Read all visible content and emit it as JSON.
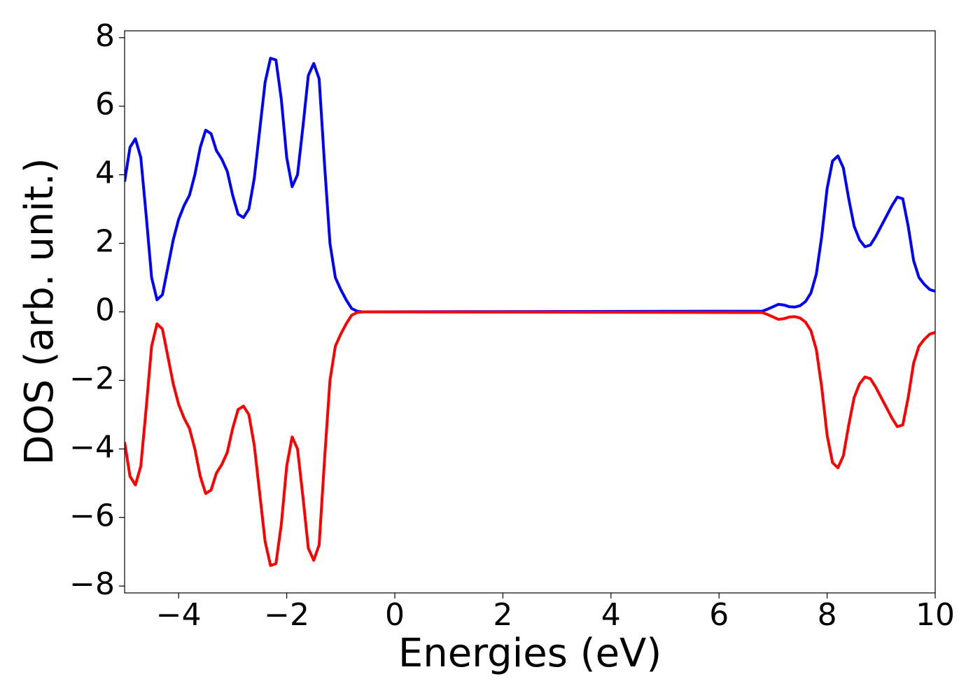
{
  "chart_data": {
    "type": "line",
    "xlabel": "Energies (eV)",
    "ylabel": "DOS (arb. unit.)",
    "xlim": [
      -5,
      10
    ],
    "ylim": [
      -8.2,
      8.2
    ],
    "xticks": [
      {
        "value": -4,
        "label": "−4"
      },
      {
        "value": -2,
        "label": "−2"
      },
      0,
      2,
      4,
      6,
      8,
      10
    ],
    "yticks": [
      {
        "value": -8,
        "label": "−8"
      },
      {
        "value": -6,
        "label": "−6"
      },
      {
        "value": -4,
        "label": "−4"
      },
      {
        "value": -2,
        "label": "−2"
      },
      0,
      2,
      4,
      6,
      8
    ],
    "x": [
      -5.0,
      -4.9,
      -4.8,
      -4.7,
      -4.6,
      -4.5,
      -4.4,
      -4.3,
      -4.2,
      -4.1,
      -4.0,
      -3.9,
      -3.8,
      -3.7,
      -3.6,
      -3.5,
      -3.4,
      -3.3,
      -3.2,
      -3.1,
      -3.0,
      -2.9,
      -2.8,
      -2.7,
      -2.6,
      -2.5,
      -2.4,
      -2.3,
      -2.2,
      -2.1,
      -2.0,
      -1.9,
      -1.8,
      -1.7,
      -1.6,
      -1.5,
      -1.4,
      -1.3,
      -1.2,
      -1.1,
      -1.0,
      -0.9,
      -0.8,
      -0.7,
      -0.6,
      6.8,
      6.9,
      7.0,
      7.1,
      7.2,
      7.3,
      7.4,
      7.5,
      7.6,
      7.7,
      7.8,
      7.9,
      8.0,
      8.1,
      8.2,
      8.3,
      8.4,
      8.5,
      8.6,
      8.7,
      8.8,
      8.9,
      9.0,
      9.1,
      9.2,
      9.3,
      9.4,
      9.5,
      9.6,
      9.7,
      9.8,
      9.9,
      10.0
    ],
    "series": [
      {
        "color": "#0000ff",
        "values": [
          3.8,
          4.8,
          5.05,
          4.5,
          2.8,
          1.0,
          0.35,
          0.5,
          1.3,
          2.1,
          2.7,
          3.1,
          3.4,
          4.0,
          4.8,
          5.3,
          5.2,
          4.7,
          4.45,
          4.1,
          3.4,
          2.85,
          2.75,
          3.0,
          3.9,
          5.3,
          6.7,
          7.4,
          7.35,
          6.2,
          4.5,
          3.65,
          4.0,
          5.4,
          6.9,
          7.25,
          6.8,
          4.3,
          2.0,
          1.0,
          0.65,
          0.35,
          0.1,
          0.02,
          0,
          0.02,
          0.08,
          0.15,
          0.22,
          0.2,
          0.15,
          0.14,
          0.18,
          0.3,
          0.55,
          1.1,
          2.2,
          3.6,
          4.4,
          4.55,
          4.2,
          3.3,
          2.5,
          2.1,
          1.9,
          1.95,
          2.2,
          2.5,
          2.8,
          3.1,
          3.35,
          3.3,
          2.5,
          1.5,
          1.0,
          0.8,
          0.65,
          0.6
        ]
      },
      {
        "color": "#ff0000",
        "values": [
          -3.8,
          -4.8,
          -5.05,
          -4.5,
          -2.8,
          -1.0,
          -0.35,
          -0.5,
          -1.3,
          -2.1,
          -2.7,
          -3.1,
          -3.4,
          -4.0,
          -4.8,
          -5.3,
          -5.2,
          -4.7,
          -4.45,
          -4.1,
          -3.4,
          -2.85,
          -2.75,
          -3.0,
          -3.9,
          -5.3,
          -6.7,
          -7.4,
          -7.35,
          -6.2,
          -4.5,
          -3.65,
          -4.0,
          -5.4,
          -6.9,
          -7.25,
          -6.8,
          -4.3,
          -2.0,
          -1.0,
          -0.65,
          -0.35,
          -0.1,
          -0.02,
          0,
          -0.02,
          -0.08,
          -0.15,
          -0.22,
          -0.2,
          -0.15,
          -0.14,
          -0.18,
          -0.3,
          -0.55,
          -1.1,
          -2.2,
          -3.6,
          -4.4,
          -4.55,
          -4.2,
          -3.3,
          -2.5,
          -2.1,
          -1.9,
          -1.95,
          -2.2,
          -2.5,
          -2.8,
          -3.1,
          -3.35,
          -3.3,
          -2.5,
          -1.5,
          -1.0,
          -0.8,
          -0.65,
          -0.6
        ]
      }
    ]
  }
}
